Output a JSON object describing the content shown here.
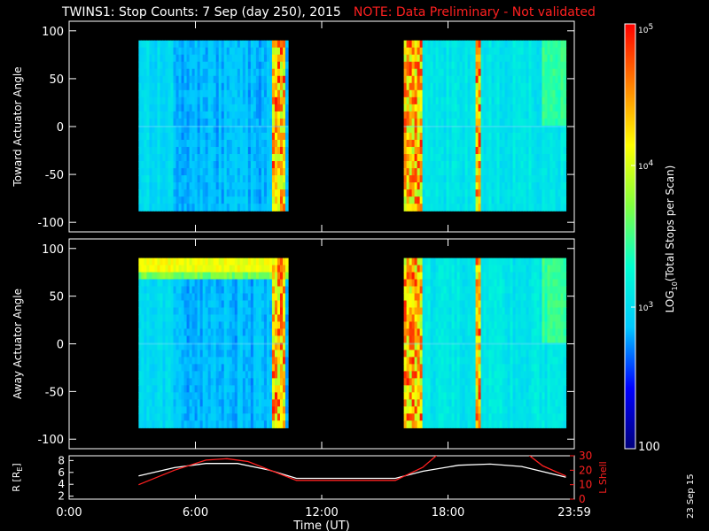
{
  "title": "TWINS1: Stop Counts:  7 Sep (day 250), 2015",
  "note": "NOTE: Data Preliminary - Not validated",
  "stamp": "23 Sep 15",
  "colorbar": {
    "label_pre": "LOG",
    "label_sub": "10",
    "label_post": "(Total Stops per Scan)",
    "ticks": [
      {
        "value": 100,
        "text": "100"
      },
      {
        "value": 1000,
        "text": "10",
        "exp": "3"
      },
      {
        "value": 10000,
        "text": "10",
        "exp": "4"
      },
      {
        "value": 100000,
        "text": "10",
        "exp": "5"
      }
    ],
    "range": [
      100,
      100000
    ],
    "colors": [
      "#00007a",
      "#0000ff",
      "#00c8ff",
      "#00ffd0",
      "#80ff40",
      "#ffff00",
      "#ff8000",
      "#ff0000"
    ]
  },
  "chart_data": [
    {
      "type": "heatmap",
      "name": "toward",
      "ylabel": "Toward Actuator Angle",
      "ylim": [
        -110,
        110
      ],
      "yticks": [
        100,
        50,
        0,
        -50,
        -100
      ],
      "x_hours_range": [
        0,
        24
      ],
      "data_blocks_hours": [
        [
          3.3,
          10.4
        ],
        [
          15.9,
          23.6
        ]
      ],
      "y_extent": [
        -88,
        90
      ],
      "hot_bands_hours": [
        [
          9.6,
          10.3
        ],
        [
          15.9,
          16.8
        ],
        [
          19.3,
          19.5
        ]
      ],
      "top_band": false
    },
    {
      "type": "heatmap",
      "name": "away",
      "ylabel": "Away Actuator Angle",
      "ylim": [
        -110,
        110
      ],
      "yticks": [
        100,
        50,
        0,
        -50,
        -100
      ],
      "x_hours_range": [
        0,
        24
      ],
      "data_blocks_hours": [
        [
          3.3,
          10.4
        ],
        [
          15.9,
          23.6
        ]
      ],
      "y_extent": [
        -88,
        90
      ],
      "hot_bands_hours": [
        [
          9.6,
          10.3
        ],
        [
          15.9,
          16.8
        ],
        [
          19.3,
          19.5
        ]
      ],
      "top_band": true
    },
    {
      "type": "line",
      "name": "orbit",
      "ylabel_left": "R [R",
      "ylabel_left_sub": "E",
      "ylabel_left_end": "]",
      "ylabel_right": "L Shell",
      "yticks_left": [
        2,
        4,
        6,
        8
      ],
      "ylim_left": [
        1.5,
        8.8
      ],
      "yticks_right": [
        0,
        10,
        20,
        30
      ],
      "ylim_right": [
        0,
        30
      ],
      "series": [
        {
          "axis": "left",
          "color": "#ffffff",
          "x": [
            3.3,
            5,
            6.5,
            8,
            9.5,
            10.8,
            15.5,
            16.8,
            18.5,
            20,
            21.5,
            23.6
          ],
          "y": [
            5.4,
            6.8,
            7.5,
            7.5,
            6.4,
            5.0,
            5.0,
            6.2,
            7.2,
            7.4,
            7.0,
            5.2
          ]
        },
        {
          "axis": "right",
          "color": "#ff2020",
          "x": [
            3.3,
            5,
            6.5,
            7.5,
            8.5,
            10.8,
            15.5,
            16.8,
            17.6,
            21.7,
            22.5,
            23.6
          ],
          "y": [
            10,
            20,
            27,
            28,
            26,
            13,
            13,
            22,
            32,
            32,
            23,
            16
          ]
        }
      ]
    }
  ],
  "xaxis": {
    "label": "Time (UT)",
    "ticks": [
      {
        "hour": 0,
        "text": "0:00"
      },
      {
        "hour": 6,
        "text": "6:00"
      },
      {
        "hour": 12,
        "text": "12:00"
      },
      {
        "hour": 18,
        "text": "18:00"
      },
      {
        "hour": 24,
        "text": "23:59"
      }
    ]
  }
}
